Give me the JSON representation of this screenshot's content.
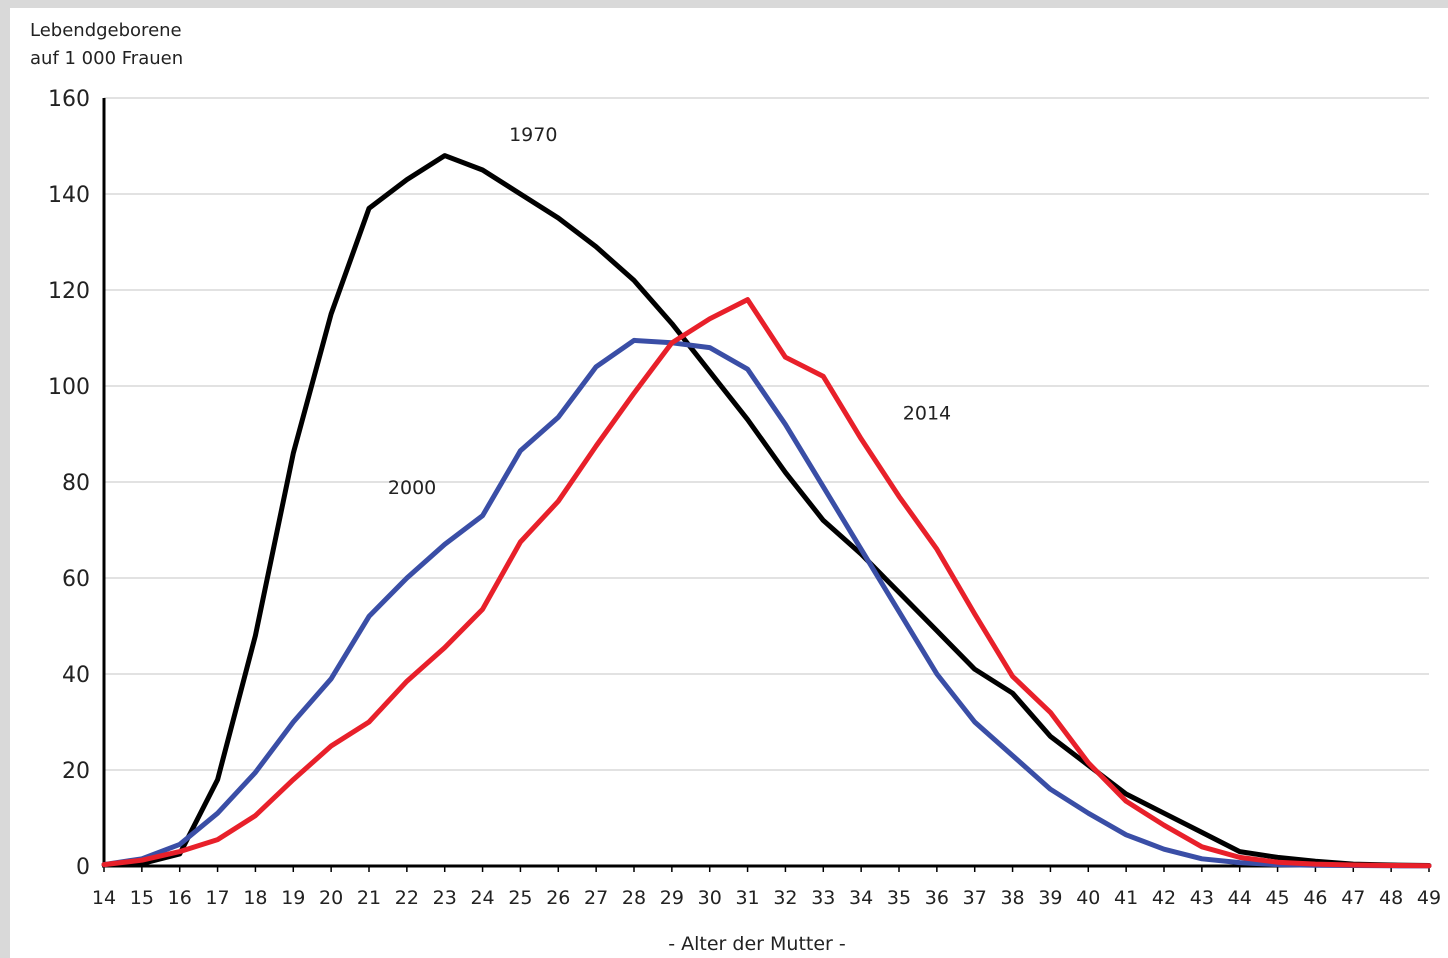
{
  "chart_data": {
    "type": "line",
    "ylabel_lines": [
      "Lebendgeborene",
      "auf 1 000 Frauen"
    ],
    "xlabel": "- Alter der Mutter -",
    "x": [
      14,
      15,
      16,
      17,
      18,
      19,
      20,
      21,
      22,
      23,
      24,
      25,
      26,
      27,
      28,
      29,
      30,
      31,
      32,
      33,
      34,
      35,
      36,
      37,
      38,
      39,
      40,
      41,
      42,
      43,
      44,
      45,
      46,
      47,
      48,
      49
    ],
    "xlim": [
      14,
      49
    ],
    "ylim": [
      0,
      160
    ],
    "yticks": [
      0,
      20,
      40,
      60,
      80,
      100,
      120,
      140,
      160
    ],
    "grid": true,
    "series": [
      {
        "name": "1970",
        "color": "#000000",
        "values": [
          0.3,
          0.5,
          2.5,
          18,
          48,
          86,
          115,
          137,
          143,
          148,
          145,
          140,
          135,
          129,
          122,
          113,
          103,
          93,
          82,
          72,
          65,
          57,
          49,
          41,
          36,
          27,
          21,
          15,
          11,
          7,
          3,
          1.8,
          1,
          0.4,
          0.2,
          0.1
        ]
      },
      {
        "name": "2000",
        "color": "#3a4ea6",
        "values": [
          0.3,
          1.5,
          4.5,
          11,
          19.5,
          30,
          39,
          52,
          60,
          67,
          73,
          86.5,
          93.5,
          104,
          109.5,
          109,
          108,
          103.5,
          92,
          79,
          66,
          53,
          40,
          30,
          23,
          16,
          11,
          6.5,
          3.5,
          1.5,
          0.7,
          0.3,
          0.15,
          0.1,
          0.05,
          0.02
        ]
      },
      {
        "name": "2014",
        "color": "#e8202a",
        "values": [
          0.3,
          1.2,
          3,
          5.5,
          10.5,
          18,
          25,
          30,
          38.5,
          45.5,
          53.5,
          67.5,
          76,
          87.5,
          98.5,
          109,
          114,
          118,
          106,
          102,
          89,
          77,
          66,
          52.5,
          39.5,
          32,
          21.5,
          13.5,
          8.5,
          4,
          1.8,
          0.8,
          0.4,
          0.2,
          0.1,
          0.05
        ]
      }
    ]
  }
}
